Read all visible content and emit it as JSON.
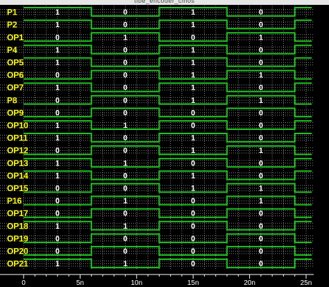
{
  "window": {
    "title": "tibe_encoder_cmos",
    "background": "#000000",
    "wave_color": "#21c421",
    "label_color": "#ffff00",
    "value_color": "#ffffff",
    "grid_color": "#8a8a8a"
  },
  "time_axis": {
    "ticks": [
      "0",
      "5n",
      "10n",
      "15n",
      "20n",
      "25n"
    ],
    "tick_values_ns": [
      0,
      5,
      10,
      15,
      20,
      25
    ],
    "end_ns": 25.5
  },
  "signals": [
    {
      "name": "P1",
      "edges_ns": [
        6,
        12,
        18,
        24
      ],
      "start_level": 1,
      "values": [
        "1",
        "0",
        "1",
        "0"
      ]
    },
    {
      "name": "P2",
      "edges_ns": [
        6,
        12,
        18,
        24
      ],
      "start_level": 1,
      "values": [
        "1",
        "0",
        "1",
        "0"
      ]
    },
    {
      "name": "OP1",
      "edges_ns": [
        6,
        12,
        18,
        24
      ],
      "start_level": 0,
      "values": [
        "0",
        "1",
        "0",
        "1"
      ]
    },
    {
      "name": "P4",
      "edges_ns": [
        6,
        12,
        18,
        24
      ],
      "start_level": 1,
      "values": [
        "1",
        "0",
        "1",
        "0"
      ]
    },
    {
      "name": "OP5",
      "edges_ns": [
        6,
        12,
        18,
        24
      ],
      "start_level": 1,
      "values": [
        "1",
        "0",
        "1",
        "0"
      ]
    },
    {
      "name": "OP6",
      "edges_ns": [
        6,
        12,
        18,
        24
      ],
      "start_level": 0,
      "values": [
        "0",
        "0",
        "1",
        "1"
      ]
    },
    {
      "name": "OP7",
      "edges_ns": [
        6,
        12,
        18,
        24
      ],
      "start_level": 1,
      "values": [
        "1",
        "0",
        "1",
        "0"
      ]
    },
    {
      "name": "P8",
      "edges_ns": [
        6,
        12,
        18,
        24
      ],
      "start_level": 0,
      "values": [
        "0",
        "0",
        "1",
        "1"
      ]
    },
    {
      "name": "OP9",
      "edges_ns": [
        6,
        12,
        18,
        24
      ],
      "start_level": 0,
      "values": [
        "0",
        "0",
        "0",
        "0"
      ]
    },
    {
      "name": "OP10",
      "edges_ns": [
        6,
        12,
        18,
        24
      ],
      "start_level": 1,
      "values": [
        "1",
        "1",
        "0",
        "0"
      ]
    },
    {
      "name": "OP11",
      "edges_ns": [
        6,
        12,
        18,
        24
      ],
      "start_level": 1,
      "values": [
        "1",
        "0",
        "1",
        "0"
      ]
    },
    {
      "name": "OP12",
      "edges_ns": [
        6,
        12,
        18,
        24
      ],
      "start_level": 0,
      "values": [
        "0",
        "0",
        "1",
        "1"
      ]
    },
    {
      "name": "OP13",
      "edges_ns": [
        6,
        12,
        18,
        24
      ],
      "start_level": 1,
      "values": [
        "1",
        "1",
        "0",
        "0"
      ]
    },
    {
      "name": "OP14",
      "edges_ns": [
        6,
        12,
        18,
        24
      ],
      "start_level": 1,
      "values": [
        "1",
        "0",
        "1",
        "0"
      ]
    },
    {
      "name": "OP15",
      "edges_ns": [
        6,
        12,
        18,
        24
      ],
      "start_level": 0,
      "values": [
        "0",
        "0",
        "1",
        "1"
      ]
    },
    {
      "name": "P16",
      "edges_ns": [
        6,
        12,
        18,
        24
      ],
      "start_level": 0,
      "values": [
        "0",
        "1",
        "0",
        "1"
      ]
    },
    {
      "name": "OP17",
      "edges_ns": [
        6,
        12,
        18,
        24
      ],
      "start_level": 0,
      "values": [
        "0",
        "0",
        "0",
        "0"
      ]
    },
    {
      "name": "OP18",
      "edges_ns": [
        6,
        12,
        18,
        24
      ],
      "start_level": 1,
      "values": [
        "1",
        "1",
        "0",
        "0"
      ]
    },
    {
      "name": "OP19",
      "edges_ns": [
        6,
        12,
        18,
        24
      ],
      "start_level": 0,
      "values": [
        "0",
        "0",
        "0",
        "0"
      ]
    },
    {
      "name": "OP20",
      "edges_ns": [
        6,
        12,
        18,
        24
      ],
      "start_level": 0,
      "values": [
        "0",
        "0",
        "0",
        "0"
      ]
    },
    {
      "name": "OP21",
      "edges_ns": [
        6,
        12,
        18,
        24
      ],
      "start_level": 1,
      "values": [
        "1",
        "1",
        "0",
        "0"
      ]
    }
  ]
}
